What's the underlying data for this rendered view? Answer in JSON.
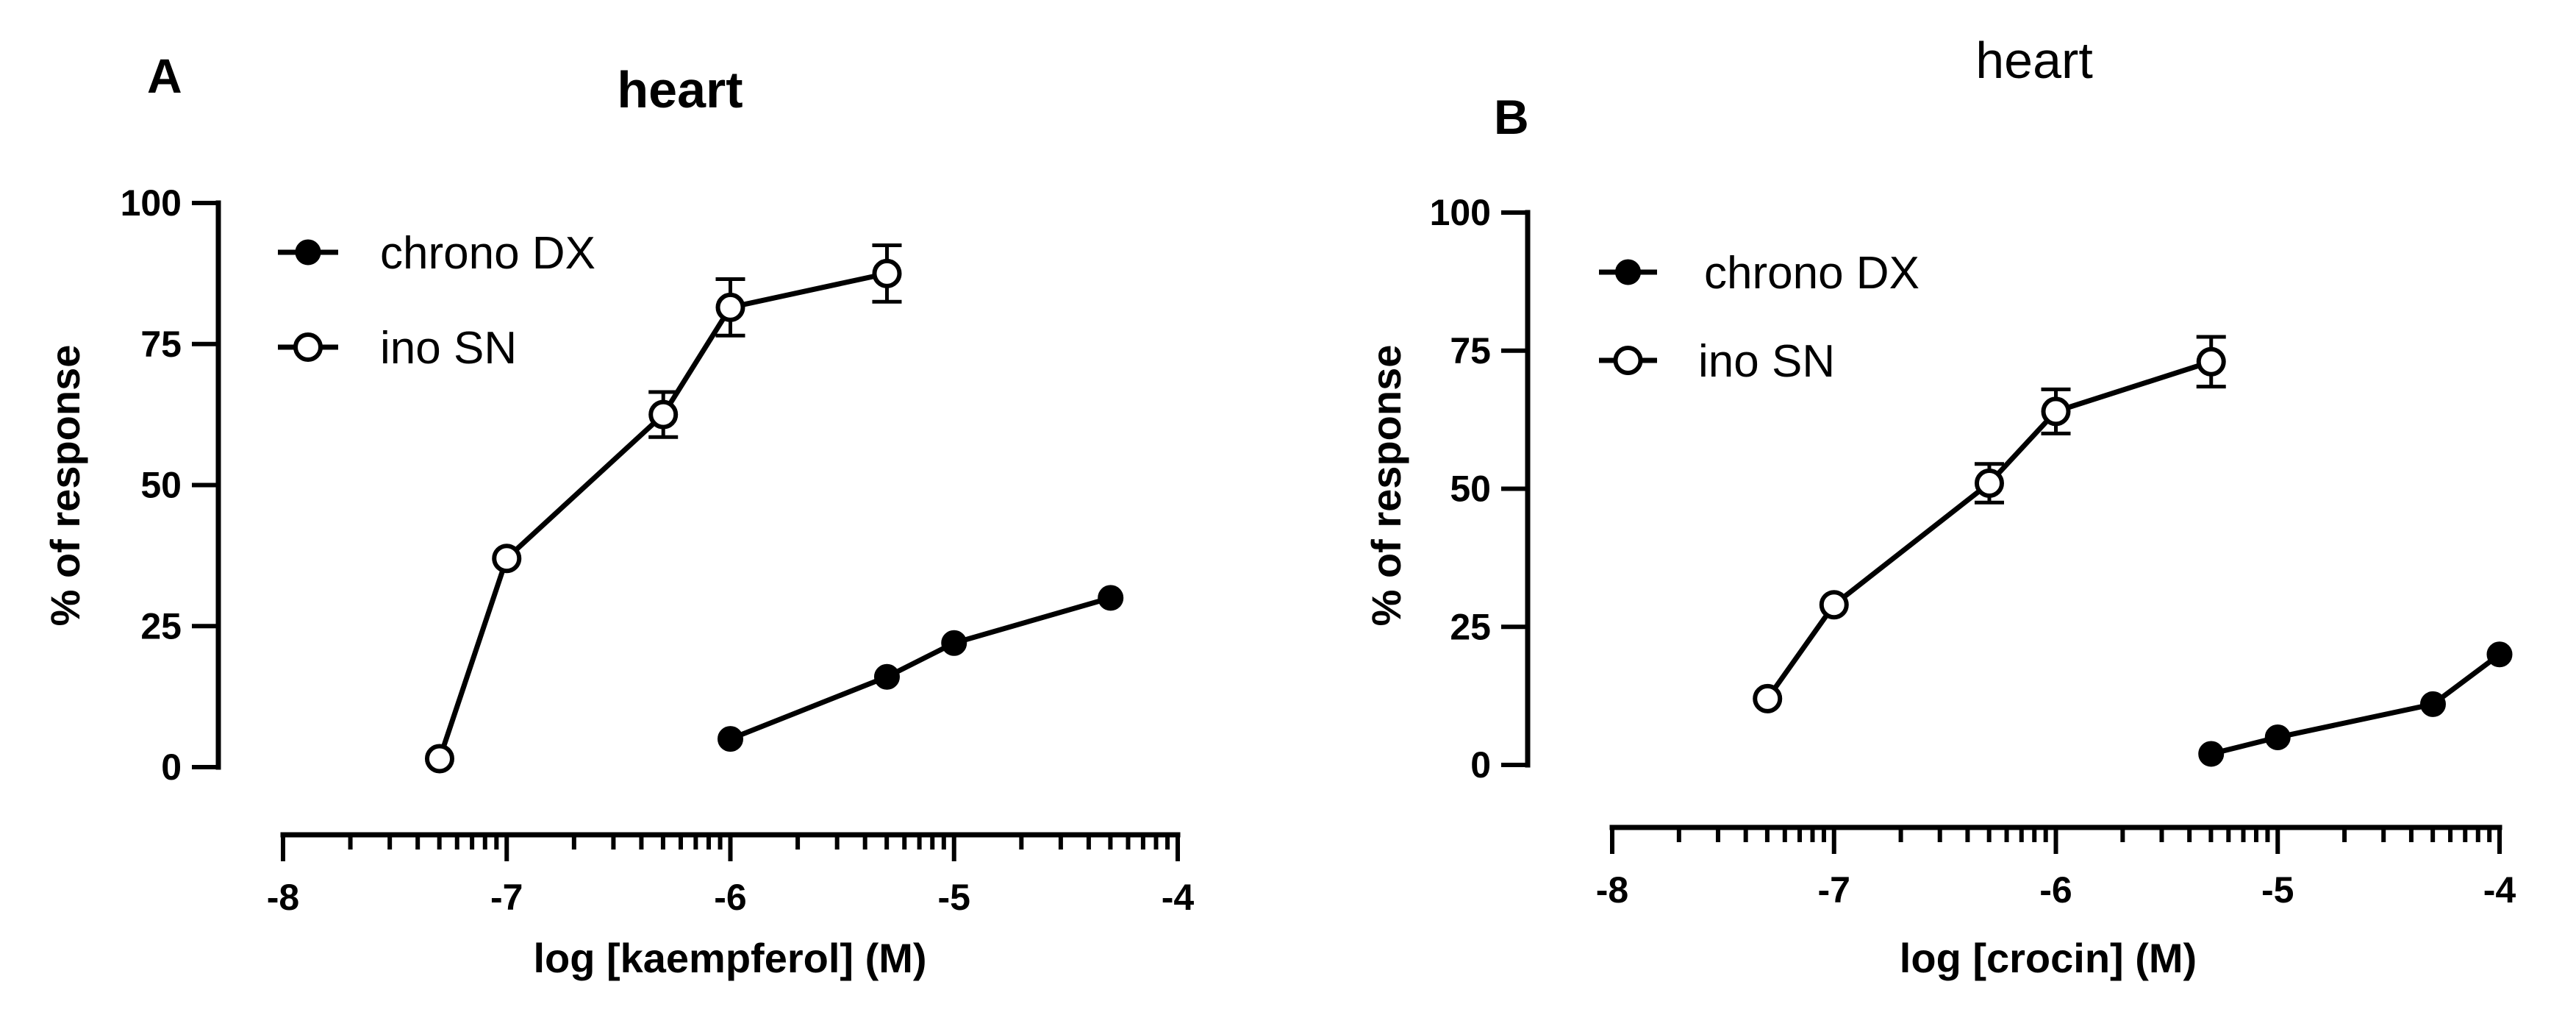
{
  "chart_data": [
    {
      "type": "line",
      "panel_label": "A",
      "title": "heart",
      "title_style": "bold",
      "xlabel": "log [kaempferol] (M)",
      "ylabel": "% of response",
      "xlim": [
        -8,
        -4
      ],
      "ylim": [
        0,
        100
      ],
      "xticks": [
        -8,
        -7,
        -6,
        -5,
        -4
      ],
      "xtick_labels": [
        "-8",
        "-7",
        "-6",
        "-5",
        "-4"
      ],
      "yticks": [
        0,
        25,
        50,
        75,
        100
      ],
      "ytick_labels": [
        "0",
        "25",
        "50",
        "75",
        "100"
      ],
      "legend_position": "top-left",
      "series": [
        {
          "name": "chrono DX",
          "marker": "filled-circle",
          "x": [
            -6.0,
            -5.3,
            -5.0,
            -4.3
          ],
          "y": [
            5,
            16,
            22,
            30
          ],
          "err": [
            0,
            0,
            0,
            0
          ]
        },
        {
          "name": "ino SN",
          "marker": "open-circle",
          "x": [
            -7.3,
            -7.0,
            -6.3,
            -6.0,
            -5.3
          ],
          "y": [
            1.5,
            37,
            62.5,
            81.5,
            87.5
          ],
          "err": [
            0,
            0,
            4,
            5,
            5
          ]
        }
      ]
    },
    {
      "type": "line",
      "panel_label": "B",
      "title": "heart",
      "title_style": "normal",
      "xlabel": "log [crocin] (M)",
      "ylabel": "% of response",
      "xlim": [
        -8,
        -4
      ],
      "ylim": [
        0,
        100
      ],
      "xticks": [
        -8,
        -7,
        -6,
        -5,
        -4
      ],
      "xtick_labels": [
        "-8",
        "-7",
        "-6",
        "-5",
        "-4"
      ],
      "yticks": [
        0,
        25,
        50,
        75,
        100
      ],
      "ytick_labels": [
        "0",
        "25",
        "50",
        "75",
        "100"
      ],
      "legend_position": "top-left",
      "series": [
        {
          "name": "chrono DX",
          "marker": "filled-circle",
          "x": [
            -5.3,
            -5.0,
            -4.3,
            -4.0
          ],
          "y": [
            2,
            5,
            11,
            20
          ],
          "err": [
            0,
            0,
            0,
            0
          ]
        },
        {
          "name": "ino SN",
          "marker": "open-circle",
          "x": [
            -7.3,
            -7.0,
            -6.3,
            -6.0,
            -5.3
          ],
          "y": [
            12,
            29,
            51,
            64,
            73
          ],
          "err": [
            0,
            0,
            3.5,
            4,
            4.5
          ]
        }
      ]
    }
  ]
}
